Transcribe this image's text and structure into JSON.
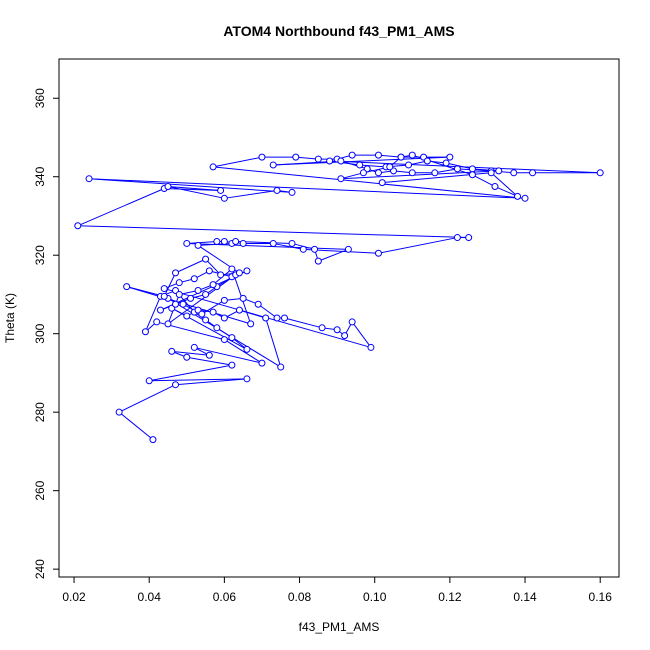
{
  "chart_data": {
    "type": "line",
    "title": "ATOM4 Northbound f43_PM1_AMS",
    "xlabel": "f43_PM1_AMS",
    "ylabel": "Theta (K)",
    "xlim": [
      0.016,
      0.165
    ],
    "ylim": [
      238,
      370
    ],
    "xticks": [
      "0.02",
      "0.04",
      "0.06",
      "0.08",
      "0.10",
      "0.12",
      "0.14",
      "0.16"
    ],
    "yticks": [
      "240",
      "260",
      "280",
      "300",
      "320",
      "340",
      "360"
    ],
    "grid": false,
    "legend": "none",
    "series_color": "#0000ff",
    "marker": "open-circle",
    "x": [
      0.041,
      0.032,
      0.047,
      0.066,
      0.04,
      0.062,
      0.05,
      0.046,
      0.056,
      0.052,
      0.07,
      0.06,
      0.042,
      0.039,
      0.043,
      0.047,
      0.052,
      0.055,
      0.058,
      0.062,
      0.066,
      0.046,
      0.05,
      0.053,
      0.057,
      0.06,
      0.064,
      0.071,
      0.075,
      0.045,
      0.049,
      0.054,
      0.06,
      0.065,
      0.069,
      0.074,
      0.076,
      0.086,
      0.09,
      0.092,
      0.094,
      0.099,
      0.044,
      0.048,
      0.052,
      0.056,
      0.062,
      0.066,
      0.043,
      0.047,
      0.051,
      0.055,
      0.058,
      0.063,
      0.045,
      0.048,
      0.053,
      0.057,
      0.062,
      0.067,
      0.034,
      0.044,
      0.047,
      0.055,
      0.059,
      0.064,
      0.053,
      0.062,
      0.063,
      0.078,
      0.084,
      0.085,
      0.093,
      0.05,
      0.058,
      0.06,
      0.065,
      0.073,
      0.081,
      0.101,
      0.122,
      0.125,
      0.021,
      0.044,
      0.059,
      0.045,
      0.06,
      0.074,
      0.078,
      0.024,
      0.14,
      0.057,
      0.07,
      0.079,
      0.085,
      0.09,
      0.094,
      0.101,
      0.107,
      0.113,
      0.12,
      0.073,
      0.091,
      0.098,
      0.101,
      0.105,
      0.11,
      0.116,
      0.122,
      0.131,
      0.137,
      0.142,
      0.16,
      0.088,
      0.096,
      0.103,
      0.109,
      0.114,
      0.119,
      0.126,
      0.133,
      0.091,
      0.097,
      0.104,
      0.107,
      0.11,
      0.126,
      0.132,
      0.138,
      0.131,
      0.102
    ],
    "y": [
      273,
      280,
      287,
      288.5,
      288,
      292,
      294,
      295.5,
      294.5,
      296.5,
      292.5,
      298.5,
      303,
      300.5,
      309.5,
      311,
      305.5,
      303.5,
      301.5,
      299,
      296,
      306.5,
      304.5,
      306,
      305.5,
      304,
      306,
      304,
      291.5,
      309,
      307.5,
      305,
      308.5,
      309,
      307.5,
      304,
      304,
      301.5,
      301,
      299.5,
      303,
      296.5,
      311.5,
      313,
      314,
      316,
      314.5,
      316,
      306,
      307.5,
      309,
      310,
      312,
      315,
      302.5,
      310,
      311,
      312.5,
      316.5,
      302.5,
      312,
      309.5,
      315.5,
      319,
      315,
      315.5,
      322.5,
      323,
      323.5,
      323,
      321.5,
      318.5,
      321.5,
      323,
      323.5,
      323.5,
      323,
      323,
      321.5,
      320.5,
      324.5,
      324.5,
      327.5,
      337,
      336.5,
      337.5,
      334.5,
      336.5,
      336,
      339.5,
      334.5,
      342.5,
      345,
      345,
      344.5,
      344.5,
      345.5,
      345.5,
      345,
      345,
      345,
      343,
      344,
      342,
      341,
      341.5,
      341,
      341,
      342,
      341.5,
      341,
      341,
      341,
      344,
      343,
      342.5,
      343,
      344,
      343.5,
      342,
      341.5,
      339.5,
      341,
      342.5,
      345,
      345.5,
      340.5,
      337.5,
      335,
      341,
      338.5
    ]
  }
}
